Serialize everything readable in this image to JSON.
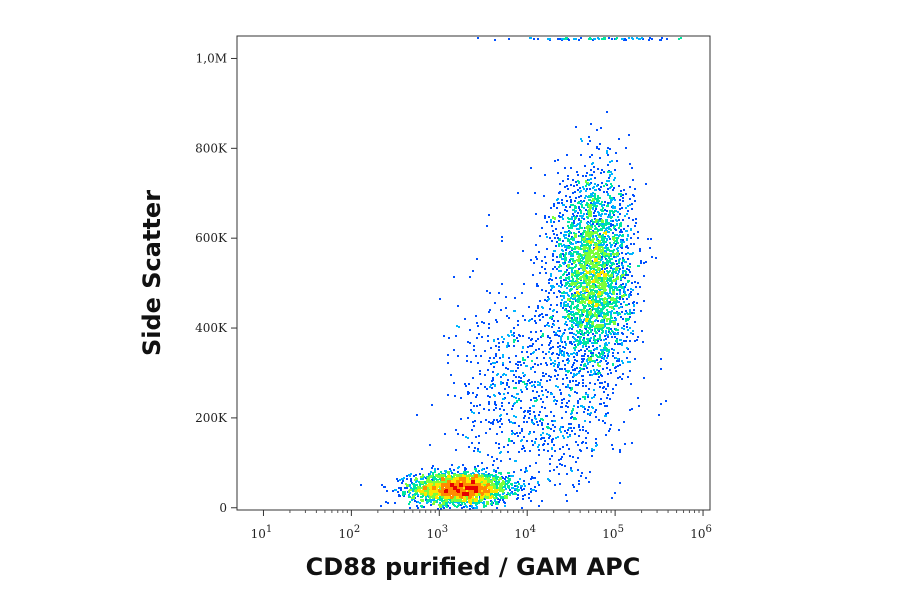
{
  "chart_data": {
    "type": "scatter",
    "subtype": "density-dot-plot",
    "title": "",
    "xlabel": "CD88 purified / GAM APC",
    "ylabel": "Side Scatter",
    "x_scale": "log10",
    "xlim": [
      5,
      1200000
    ],
    "ylim": [
      -5000,
      1050000
    ],
    "x_ticks": [
      {
        "value": 10,
        "base": "10",
        "exp": "1"
      },
      {
        "value": 100,
        "base": "10",
        "exp": "2"
      },
      {
        "value": 1000,
        "base": "10",
        "exp": "3"
      },
      {
        "value": 10000,
        "base": "10",
        "exp": "4"
      },
      {
        "value": 100000,
        "base": "10",
        "exp": "5"
      },
      {
        "value": 1000000,
        "base": "10",
        "exp": "6"
      }
    ],
    "y_ticks": [
      {
        "value": 0,
        "label": "0"
      },
      {
        "value": 200000,
        "label": "200K"
      },
      {
        "value": 400000,
        "label": "400K"
      },
      {
        "value": 600000,
        "label": "600K"
      },
      {
        "value": 800000,
        "label": "800K"
      },
      {
        "value": 1000000,
        "label": "1,0M"
      }
    ],
    "grid": false,
    "legend": "none",
    "density_colors": [
      "#0000cc",
      "#0050ff",
      "#00b4ff",
      "#00e6a0",
      "#7aff3c",
      "#ffe600",
      "#ff8c00",
      "#e60000"
    ],
    "populations": [
      {
        "center_x": 1700,
        "center_y": 45000,
        "spread_log10_x": 0.28,
        "spread_y": 18000,
        "density": "high"
      },
      {
        "center_x": 55000,
        "center_y": 520000,
        "spread_log10_x": 0.22,
        "spread_y": 110000,
        "density": "medium"
      },
      {
        "center_x": 12000,
        "center_y": 250000,
        "spread_log10_x": 0.45,
        "spread_y": 120000,
        "density": "low"
      },
      {
        "center_x": 60000,
        "center_y": 1040000,
        "spread_log10_x": 0.5,
        "spread_y": 4000,
        "density": "saturated-edge"
      }
    ]
  }
}
